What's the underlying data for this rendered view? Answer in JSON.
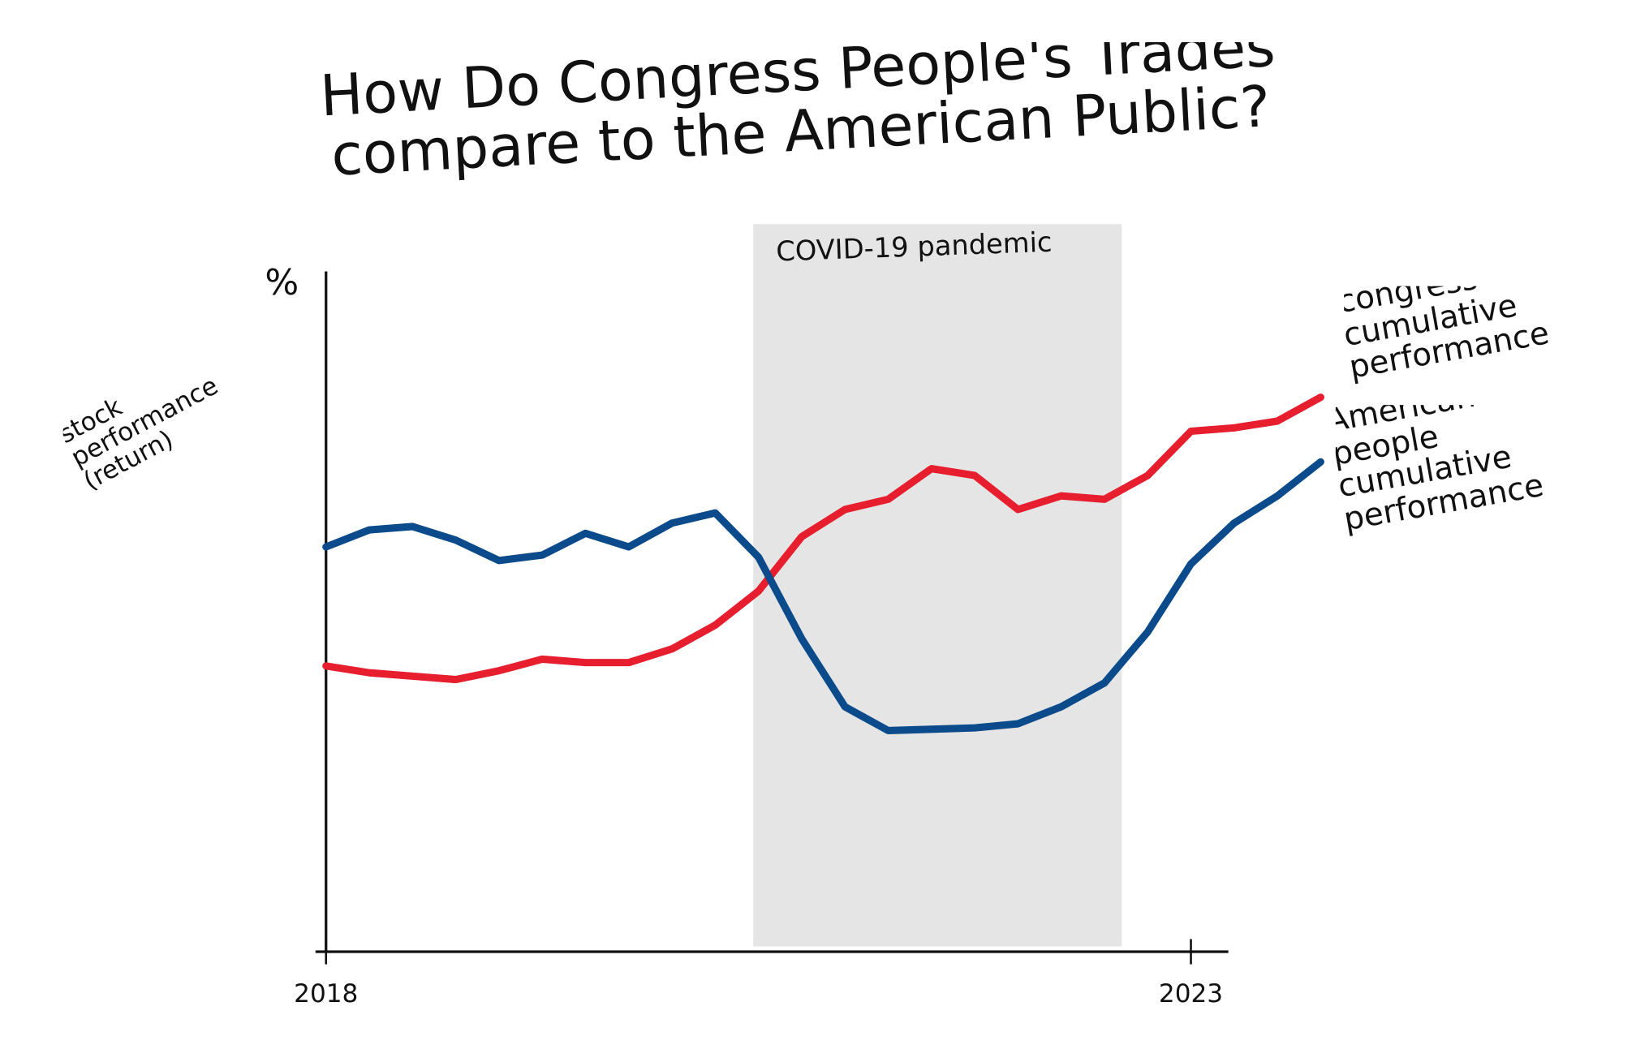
{
  "chart_data": {
    "type": "line",
    "title": "How Do Congress People's Trades compare to the American Public?",
    "y_unit": "%",
    "y_label": "stock performance (return)",
    "x": [
      2018,
      2018.25,
      2018.5,
      2018.75,
      2019,
      2019.25,
      2019.5,
      2019.75,
      2020,
      2020.25,
      2020.5,
      2020.75,
      2021,
      2021.25,
      2021.5,
      2021.75,
      2022,
      2022.25,
      2022.5,
      2022.75,
      2023,
      2023.25,
      2023.5,
      2023.75
    ],
    "series": [
      {
        "name": "congress cumulative performance",
        "color": "#e61e2e",
        "values": [
          42,
          41,
          40.5,
          40,
          41.3,
          43,
          42.5,
          42.5,
          44.5,
          48,
          53,
          61,
          65,
          66.5,
          71,
          70,
          65,
          67,
          66.5,
          70,
          76.5,
          77,
          78,
          81.5
        ]
      },
      {
        "name": "American people cumulative performance",
        "color": "#0b4a8b",
        "values": [
          59.5,
          62,
          62.5,
          60.5,
          57.5,
          58.3,
          61.5,
          59.5,
          63,
          64.5,
          58,
          46,
          36,
          32.5,
          32.7,
          32.9,
          33.5,
          36,
          39.5,
          47,
          57,
          63,
          67,
          72
        ]
      }
    ],
    "shaded_region": {
      "label": "COVID-19 pandemic",
      "x": [
        2020.47,
        2022.6
      ],
      "color": "#e5e5e5"
    },
    "xlim": [
      2018,
      2023.8
    ],
    "ylim": [
      0,
      100
    ],
    "xticks": [
      2018,
      2023
    ]
  }
}
